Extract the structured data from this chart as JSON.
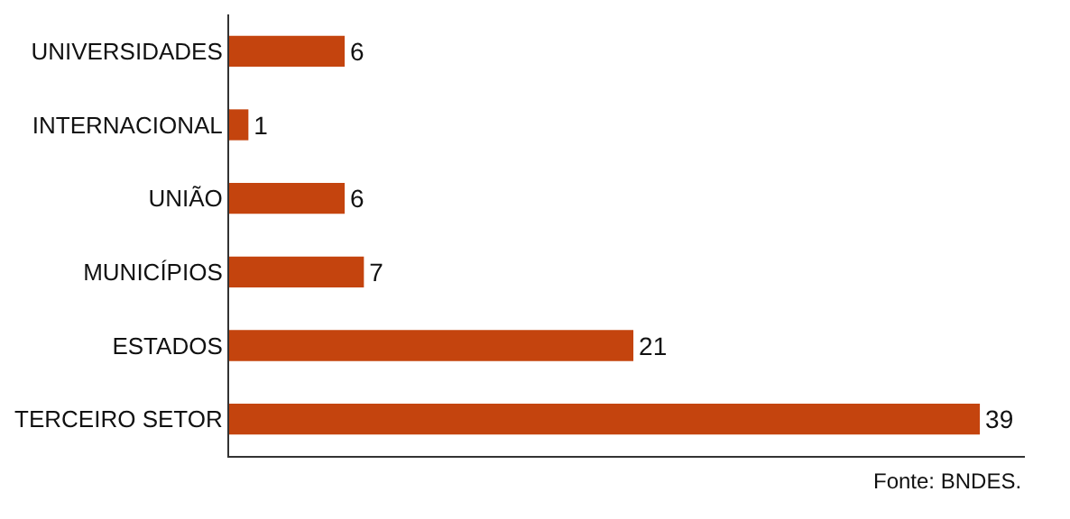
{
  "chart_data": {
    "type": "bar",
    "orientation": "horizontal",
    "categories": [
      "UNIVERSIDADES",
      "INTERNACIONAL",
      "UNIÃO",
      "MUNICÍPIOS",
      "ESTADOS",
      "TERCEIRO SETOR"
    ],
    "values": [
      6,
      1,
      6,
      7,
      21,
      39
    ],
    "color": "#c4440e",
    "data_labels": true,
    "legend": false,
    "tick_labels": "y",
    "annotations": [
      "Fonte: BNDES."
    ]
  }
}
